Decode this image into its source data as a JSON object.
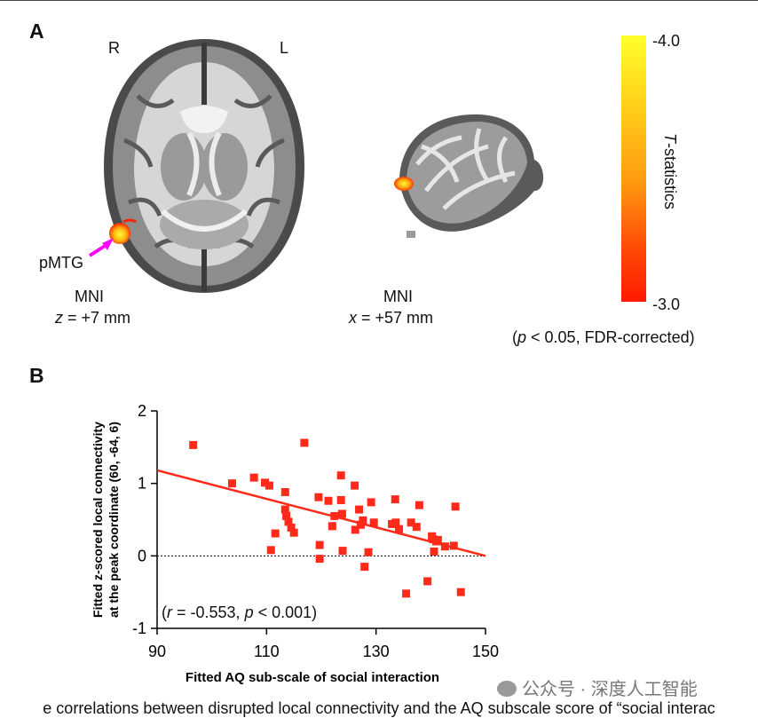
{
  "panel_a": {
    "label": "A",
    "axial": {
      "right_label": "R",
      "left_label": "L",
      "region_label": "pMTG",
      "coord_space": "MNI",
      "coord_var": "z",
      "coord_value": " = +7 mm"
    },
    "sagittal": {
      "coord_space": "MNI",
      "coord_var": "x",
      "coord_value": " = +57 mm"
    },
    "colorbar": {
      "top_value": "-4.0",
      "bottom_value": "-3.0",
      "title_var": "T",
      "title_rest": "-statistics",
      "note_open": "(",
      "note_var": "p",
      "note_rest": " < 0.05, FDR-corrected)"
    },
    "colors": {
      "blob_center": "#ffff33",
      "blob_edge": "#ff2000",
      "arrow": "#ff00ff"
    }
  },
  "panel_b": {
    "label": "B"
  },
  "chart_data": {
    "type": "scatter",
    "xlabel": "Fitted AQ sub-scale of social interaction",
    "ylabel_line1": "Fitted z-scored local connectivity",
    "ylabel_line2": "at the peak coordinate (60, -64, 6)",
    "xlim": [
      90,
      150
    ],
    "ylim": [
      -1,
      2
    ],
    "xticks": [
      90,
      110,
      130,
      150
    ],
    "yticks": [
      -1,
      0,
      1,
      2
    ],
    "marker_color": "#ff2a1a",
    "fit_line": {
      "x": [
        90,
        150
      ],
      "y": [
        1.18,
        0.0
      ],
      "color": "#ff2a1a"
    },
    "zero_reference": "dotted",
    "annotation": {
      "open": "(",
      "r_var": "r",
      "r_text": " = -0.553, ",
      "p_var": "p",
      "p_text": " < 0.001)"
    },
    "points": [
      [
        96.6,
        1.53
      ],
      [
        103.7,
        1.0
      ],
      [
        107.7,
        1.08
      ],
      [
        109.7,
        1.01
      ],
      [
        110.5,
        0.97
      ],
      [
        110.8,
        0.08
      ],
      [
        111.6,
        0.31
      ],
      [
        113.4,
        0.64
      ],
      [
        113.4,
        0.88
      ],
      [
        113.6,
        0.55
      ],
      [
        114.0,
        0.47
      ],
      [
        114.5,
        0.39
      ],
      [
        115.0,
        0.32
      ],
      [
        116.9,
        1.56
      ],
      [
        119.5,
        0.81
      ],
      [
        119.7,
        0.15
      ],
      [
        119.7,
        -0.04
      ],
      [
        121.3,
        0.76
      ],
      [
        122.0,
        0.41
      ],
      [
        122.4,
        0.55
      ],
      [
        123.6,
        1.11
      ],
      [
        123.6,
        0.77
      ],
      [
        123.8,
        0.58
      ],
      [
        123.9,
        0.07
      ],
      [
        126.1,
        0.97
      ],
      [
        126.2,
        0.36
      ],
      [
        126.9,
        0.64
      ],
      [
        127.2,
        0.43
      ],
      [
        127.6,
        0.49
      ],
      [
        127.9,
        -0.15
      ],
      [
        128.6,
        0.05
      ],
      [
        129.1,
        0.74
      ],
      [
        129.6,
        0.46
      ],
      [
        132.9,
        0.44
      ],
      [
        133.5,
        0.78
      ],
      [
        133.6,
        0.46
      ],
      [
        134.2,
        0.37
      ],
      [
        135.5,
        -0.52
      ],
      [
        136.4,
        0.46
      ],
      [
        137.4,
        0.4
      ],
      [
        137.9,
        0.7
      ],
      [
        139.4,
        -0.35
      ],
      [
        140.2,
        0.27
      ],
      [
        140.4,
        0.23
      ],
      [
        140.6,
        0.06
      ],
      [
        141.0,
        0.2
      ],
      [
        141.3,
        0.22
      ],
      [
        142.6,
        0.13
      ],
      [
        144.2,
        0.14
      ],
      [
        144.5,
        0.68
      ],
      [
        145.5,
        -0.5
      ]
    ]
  },
  "caption": "e correlations between disrupted local connectivity and the AQ subscale score of “social interac",
  "watermark": "公众号 · 深度人工智能"
}
